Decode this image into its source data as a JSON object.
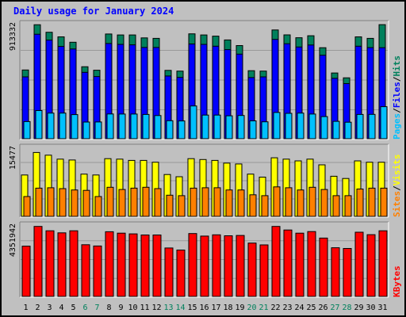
{
  "title": "Daily usage for January 2024",
  "colors": {
    "background": "#c0c0c0",
    "title": "#0000ff",
    "hits": "#00805c",
    "files": "#0000ff",
    "pages": "#00c0ff",
    "visits": "#ffff00",
    "sites": "#ff8000",
    "kbytes": "#ff0000",
    "weekday_label": "#000000",
    "weekend_label": "#00805c",
    "slash": "#000000"
  },
  "chart_data": [
    {
      "type": "bar",
      "panel": "hits-files-pages",
      "ymax_label": "913332",
      "ylim": [
        0,
        913332
      ],
      "categories": [
        "1",
        "2",
        "3",
        "4",
        "5",
        "6",
        "7",
        "8",
        "9",
        "10",
        "11",
        "12",
        "13",
        "14",
        "15",
        "16",
        "17",
        "18",
        "19",
        "20",
        "21",
        "22",
        "23",
        "24",
        "25",
        "26",
        "27",
        "28",
        "29",
        "30",
        "31"
      ],
      "series": [
        {
          "name": "Hits",
          "values": [
            550000,
            912000,
            852000,
            815000,
            772000,
            576000,
            548000,
            838000,
            830000,
            830000,
            807000,
            803000,
            547000,
            541000,
            839000,
            830000,
            821000,
            790000,
            745000,
            544000,
            541000,
            870000,
            831000,
            808000,
            824000,
            728000,
            526000,
            487000,
            815000,
            803000,
            913000
          ]
        },
        {
          "name": "Files",
          "values": [
            495000,
            836000,
            789000,
            738000,
            718000,
            531000,
            497000,
            762000,
            755000,
            751000,
            730000,
            730000,
            502000,
            490000,
            758000,
            755000,
            740000,
            713000,
            677000,
            489000,
            495000,
            795000,
            760000,
            734000,
            750000,
            668000,
            483000,
            441000,
            740000,
            729000,
            728000
          ]
        },
        {
          "name": "Pages",
          "values": [
            137000,
            225000,
            205000,
            205000,
            193000,
            133000,
            134000,
            198000,
            197000,
            197000,
            194000,
            185000,
            144000,
            142000,
            262000,
            189000,
            189000,
            183000,
            186000,
            143000,
            135000,
            210000,
            203000,
            205000,
            197000,
            177000,
            139000,
            132000,
            194000,
            195000,
            256000
          ]
        }
      ]
    },
    {
      "type": "bar",
      "panel": "visits-sites",
      "ymax_label": "15477",
      "ylim": [
        0,
        15477
      ],
      "categories": [
        "1",
        "2",
        "3",
        "4",
        "5",
        "6",
        "7",
        "8",
        "9",
        "10",
        "11",
        "12",
        "13",
        "14",
        "15",
        "16",
        "17",
        "18",
        "19",
        "20",
        "21",
        "22",
        "23",
        "24",
        "25",
        "26",
        "27",
        "28",
        "29",
        "30",
        "31"
      ],
      "series": [
        {
          "name": "Visits",
          "values": [
            9400,
            14500,
            13900,
            13000,
            12800,
            9600,
            9400,
            13100,
            13000,
            12700,
            12700,
            12300,
            9500,
            9000,
            13100,
            12900,
            12700,
            12100,
            11900,
            9600,
            8900,
            13300,
            13000,
            12600,
            13000,
            11700,
            9100,
            8600,
            12600,
            12300,
            12300
          ]
        },
        {
          "name": "Sites",
          "values": [
            4500,
            6400,
            6500,
            6300,
            6000,
            5900,
            4500,
            6600,
            6100,
            6400,
            6600,
            6300,
            4800,
            4700,
            6400,
            6500,
            6500,
            6000,
            6000,
            4900,
            4700,
            6700,
            6500,
            6000,
            6600,
            6100,
            4700,
            4700,
            6200,
            6400,
            6400
          ]
        }
      ]
    },
    {
      "type": "bar",
      "panel": "kbytes",
      "ymax_label": "4351942",
      "ylim": [
        0,
        4351942
      ],
      "categories": [
        "1",
        "2",
        "3",
        "4",
        "5",
        "6",
        "7",
        "8",
        "9",
        "10",
        "11",
        "12",
        "13",
        "14",
        "15",
        "16",
        "17",
        "18",
        "19",
        "20",
        "21",
        "22",
        "23",
        "24",
        "25",
        "26",
        "27",
        "28",
        "29",
        "30",
        "31"
      ],
      "series": [
        {
          "name": "KBytes",
          "values": [
            3100000,
            4320000,
            4050000,
            3920000,
            4050000,
            3190000,
            3110000,
            3990000,
            3900000,
            3860000,
            3790000,
            3790000,
            2990000,
            2860000,
            3880000,
            3720000,
            3800000,
            3740000,
            3760000,
            3290000,
            3180000,
            4320000,
            4100000,
            3900000,
            4000000,
            3600000,
            3000000,
            2960000,
            3960000,
            3810000,
            4050000
          ]
        }
      ]
    }
  ],
  "legends": [
    {
      "panel": "hits-files-pages",
      "parts": [
        {
          "text": "Pages",
          "color_key": "pages"
        },
        {
          "text": "/",
          "color_key": "slash"
        },
        {
          "text": "Files",
          "color_key": "files"
        },
        {
          "text": "/",
          "color_key": "slash"
        },
        {
          "text": "Hits",
          "color_key": "hits"
        }
      ]
    },
    {
      "panel": "visits-sites",
      "parts": [
        {
          "text": "Sites",
          "color_key": "sites"
        },
        {
          "text": "/",
          "color_key": "slash"
        },
        {
          "text": "Visits",
          "color_key": "visits"
        }
      ]
    },
    {
      "panel": "kbytes",
      "parts": [
        {
          "text": "KBytes",
          "color_key": "kbytes"
        }
      ]
    }
  ],
  "weekend_days": [
    "6",
    "7",
    "13",
    "14",
    "20",
    "21",
    "27",
    "28"
  ]
}
